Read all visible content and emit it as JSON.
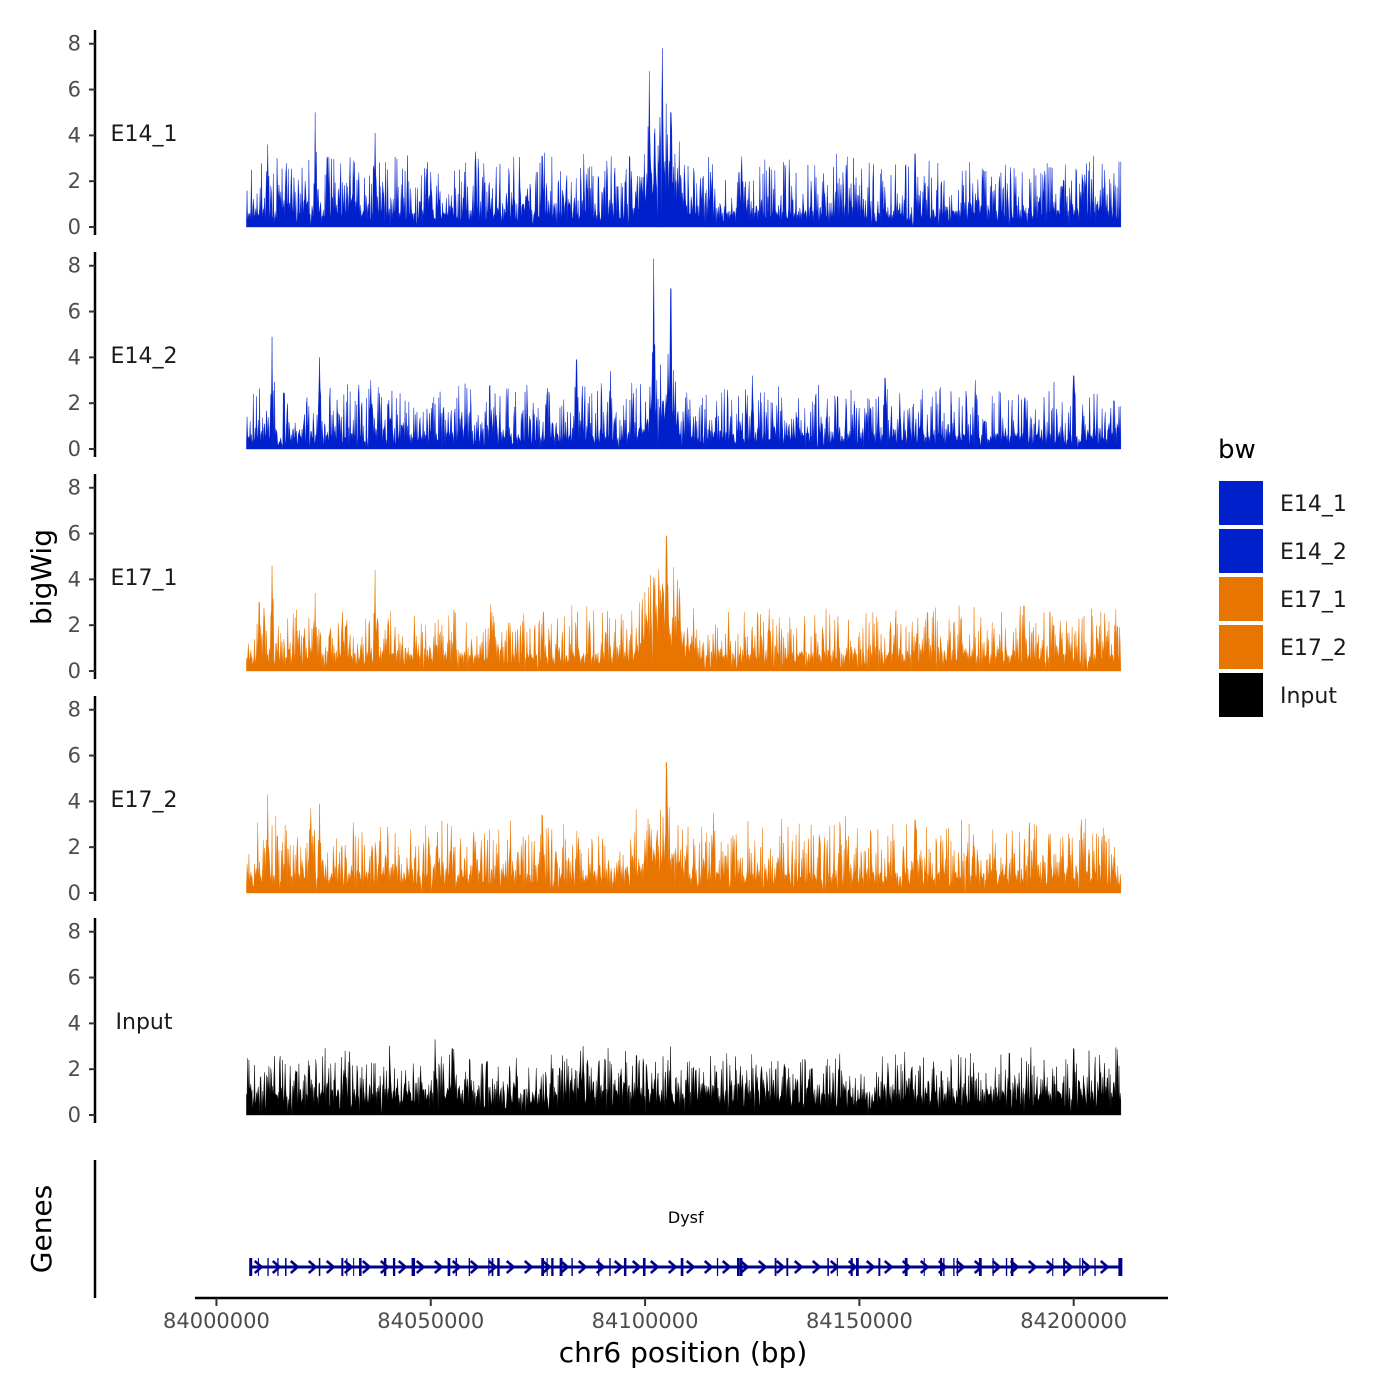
{
  "chart_data": {
    "type": "area",
    "chromosome": "chr6",
    "xlabel": "chr6 position (bp)",
    "ylabel": "bigWig",
    "gene_panel_label": "Genes",
    "xlim": [
      83995000,
      84222000
    ],
    "x_ticks": [
      84000000,
      84050000,
      84100000,
      84150000,
      84200000
    ],
    "x_tick_labels": [
      "84000000",
      "84050000",
      "84100000",
      "84150000",
      "84200000"
    ],
    "ylim": [
      0,
      8.6
    ],
    "y_ticks": [
      0,
      2,
      4,
      6,
      8
    ],
    "y_tick_labels": [
      "0",
      "2",
      "4",
      "6",
      "8"
    ],
    "data_range": [
      84007000,
      84211000
    ],
    "legend": {
      "title": "bw",
      "entries": [
        {
          "label": "E14_1",
          "color": "#0020CC"
        },
        {
          "label": "E14_2",
          "color": "#0020CC"
        },
        {
          "label": "E17_1",
          "color": "#E87500"
        },
        {
          "label": "E17_2",
          "color": "#E87500"
        },
        {
          "label": "Input",
          "color": "#000000"
        }
      ]
    },
    "series": [
      {
        "name": "E14_1",
        "color": "#0020CC",
        "base": 0.6,
        "noise": 1.6,
        "seed": 11,
        "peaks": [
          {
            "x": 84012000,
            "y": 3.6
          },
          {
            "x": 84023000,
            "y": 5.0
          },
          {
            "x": 84026000,
            "y": 3.0
          },
          {
            "x": 84037000,
            "y": 4.1
          },
          {
            "x": 84050000,
            "y": 2.4
          },
          {
            "x": 84076000,
            "y": 3.1
          },
          {
            "x": 84101000,
            "y": 6.8
          },
          {
            "x": 84104000,
            "y": 7.8
          },
          {
            "x": 84106000,
            "y": 5.0
          },
          {
            "x": 84108000,
            "y": 3.3
          },
          {
            "x": 84163000,
            "y": 3.2
          },
          {
            "x": 84202000,
            "y": 2.3
          }
        ],
        "bumps": [
          {
            "x": 84104000,
            "w": 4500,
            "h": 2.0
          }
        ]
      },
      {
        "name": "E14_2",
        "color": "#0020CC",
        "base": 0.5,
        "noise": 1.5,
        "seed": 23,
        "peaks": [
          {
            "x": 84013000,
            "y": 4.9
          },
          {
            "x": 84024000,
            "y": 4.0
          },
          {
            "x": 84036000,
            "y": 3.0
          },
          {
            "x": 84084000,
            "y": 3.9
          },
          {
            "x": 84092000,
            "y": 3.4
          },
          {
            "x": 84102000,
            "y": 8.3
          },
          {
            "x": 84106000,
            "y": 7.0
          },
          {
            "x": 84125000,
            "y": 3.2
          },
          {
            "x": 84156000,
            "y": 3.1
          },
          {
            "x": 84177000,
            "y": 3.0
          },
          {
            "x": 84200000,
            "y": 3.2
          }
        ],
        "bumps": [
          {
            "x": 84104000,
            "w": 4000,
            "h": 1.5
          }
        ]
      },
      {
        "name": "E17_1",
        "color": "#E87500",
        "base": 0.6,
        "noise": 1.4,
        "seed": 37,
        "peaks": [
          {
            "x": 84010000,
            "y": 3.0
          },
          {
            "x": 84013000,
            "y": 4.6
          },
          {
            "x": 84023000,
            "y": 3.4
          },
          {
            "x": 84037000,
            "y": 4.4
          },
          {
            "x": 84064000,
            "y": 2.9
          },
          {
            "x": 84102000,
            "y": 4.1
          },
          {
            "x": 84105000,
            "y": 5.9
          },
          {
            "x": 84108000,
            "y": 3.6
          },
          {
            "x": 84129000,
            "y": 2.7
          },
          {
            "x": 84211000,
            "y": 2.5
          }
        ],
        "bumps": [
          {
            "x": 84104000,
            "w": 5000,
            "h": 2.0
          }
        ]
      },
      {
        "name": "E17_2",
        "color": "#E87500",
        "base": 0.7,
        "noise": 1.6,
        "seed": 53,
        "peaks": [
          {
            "x": 84012000,
            "y": 4.3
          },
          {
            "x": 84022000,
            "y": 3.7
          },
          {
            "x": 84024000,
            "y": 3.9
          },
          {
            "x": 84036000,
            "y": 3.0
          },
          {
            "x": 84076000,
            "y": 3.4
          },
          {
            "x": 84101000,
            "y": 3.0
          },
          {
            "x": 84105000,
            "y": 5.7
          },
          {
            "x": 84107000,
            "y": 3.8
          },
          {
            "x": 84116000,
            "y": 3.5
          },
          {
            "x": 84163000,
            "y": 3.2
          },
          {
            "x": 84199000,
            "y": 2.4
          }
        ],
        "bumps": [
          {
            "x": 84104000,
            "w": 5000,
            "h": 1.0
          }
        ]
      },
      {
        "name": "Input",
        "color": "#000000",
        "base": 0.9,
        "noise": 1.2,
        "seed": 71,
        "peaks": [
          {
            "x": 84030000,
            "y": 2.8
          },
          {
            "x": 84051000,
            "y": 3.3
          },
          {
            "x": 84055000,
            "y": 2.9
          },
          {
            "x": 84070000,
            "y": 2.5
          },
          {
            "x": 84085000,
            "y": 2.8
          },
          {
            "x": 84098000,
            "y": 2.6
          },
          {
            "x": 84119000,
            "y": 2.7
          },
          {
            "x": 84185000,
            "y": 2.7
          },
          {
            "x": 84200000,
            "y": 2.9
          }
        ],
        "bumps": []
      }
    ],
    "genes": [
      {
        "name": "Dysf",
        "start": 84008000,
        "end": 84211000,
        "strand": "+",
        "color": "#00008B"
      }
    ]
  }
}
